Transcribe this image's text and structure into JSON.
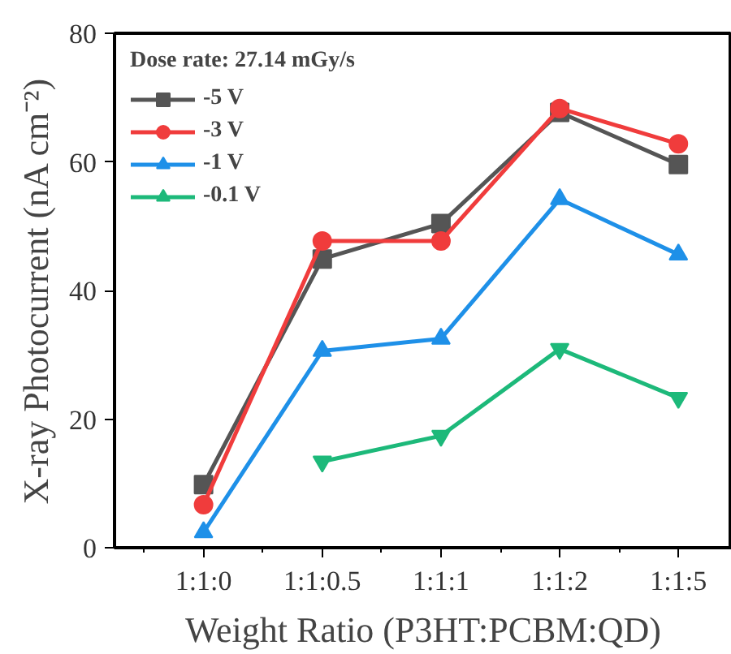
{
  "chart_data": {
    "type": "line",
    "xlabel": "Weight Ratio (P3HT:PCBM:QD)",
    "ylabel": "X-ray Photocurrent (nA cm⁻²)",
    "legend_title": "Dose rate: 27.14 mGy/s",
    "categories": [
      "1:1:0",
      "1:1:0.5",
      "1:1:1",
      "1:1:2",
      "1:1:5"
    ],
    "series": [
      {
        "name": "-5 V",
        "color": "#555555",
        "marker": "square",
        "values": [
          9.8,
          44.9,
          50.4,
          67.7,
          59.6
        ]
      },
      {
        "name": "-3 V",
        "color": "#f03c3c",
        "marker": "circle",
        "values": [
          6.7,
          47.7,
          47.7,
          68.3,
          62.8
        ]
      },
      {
        "name": "-1 V",
        "color": "#1e90e8",
        "marker": "triangle",
        "values": [
          2.4,
          30.6,
          32.5,
          54.2,
          45.6
        ]
      },
      {
        "name": "-0.1 V",
        "color": "#1db97a",
        "marker": "triangle",
        "values": [
          null,
          13.4,
          17.4,
          30.9,
          23.3
        ]
      }
    ],
    "ylim": [
      0,
      80
    ],
    "yticks": [
      0,
      20,
      40,
      60,
      80
    ],
    "grid": false,
    "legend": "top left",
    "line_style": "solid"
  }
}
